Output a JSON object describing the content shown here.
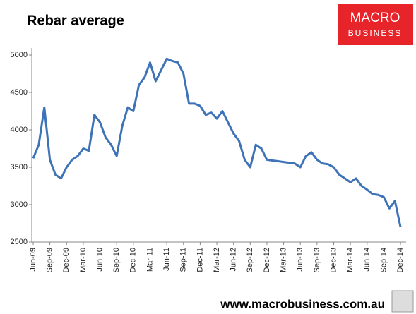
{
  "chart_data": {
    "type": "line",
    "title": "Rebar average",
    "logo": [
      "MACRO",
      "BUSINESS"
    ],
    "footer": "www.macrobusiness.com.au",
    "categories": [
      "Jun-09",
      null,
      null,
      "Sep-09",
      null,
      null,
      "Dec-09",
      null,
      null,
      "Mar-10",
      null,
      null,
      "Jun-10",
      null,
      null,
      "Sep-10",
      null,
      null,
      "Dec-10",
      null,
      null,
      "Mar-11",
      null,
      null,
      "Jun-11",
      null,
      null,
      "Sep-11",
      null,
      null,
      "Dec-11",
      null,
      null,
      "Mar-12",
      null,
      null,
      "Jun-12",
      null,
      null,
      "Sep-12",
      null,
      null,
      "Dec-12",
      null,
      null,
      "Mar-13",
      null,
      null,
      "Jun-13",
      null,
      null,
      "Sep-13",
      null,
      null,
      "Dec-13",
      null,
      null,
      "Mar-14",
      null,
      null,
      "Jun-14",
      null,
      null,
      "Sep-14",
      null,
      null,
      "Dec-14"
    ],
    "series": [
      {
        "name": "Rebar average",
        "color": "#3f73b8",
        "values": [
          3620,
          3800,
          4300,
          3600,
          3400,
          3350,
          3500,
          3600,
          3650,
          3750,
          3720,
          4200,
          4100,
          3900,
          3800,
          3650,
          4050,
          4300,
          4250,
          4600,
          4700,
          4900,
          4650,
          4800,
          4950,
          4920,
          4900,
          4750,
          4350,
          4350,
          4320,
          4200,
          4230,
          4150,
          4250,
          4100,
          3950,
          3850,
          3600,
          3500,
          3800,
          3750,
          3600,
          3590,
          3580,
          3570,
          3560,
          3550,
          3500,
          3650,
          3700,
          3600,
          3550,
          3540,
          3500,
          3400,
          3350,
          3300,
          3350,
          3250,
          3200,
          3140,
          3130,
          3100,
          2950,
          3050,
          2700
        ]
      }
    ],
    "ylim": [
      2500,
      5000
    ],
    "yticks": [
      2500,
      3000,
      3500,
      4000,
      4500,
      5000
    ],
    "grid": false
  }
}
